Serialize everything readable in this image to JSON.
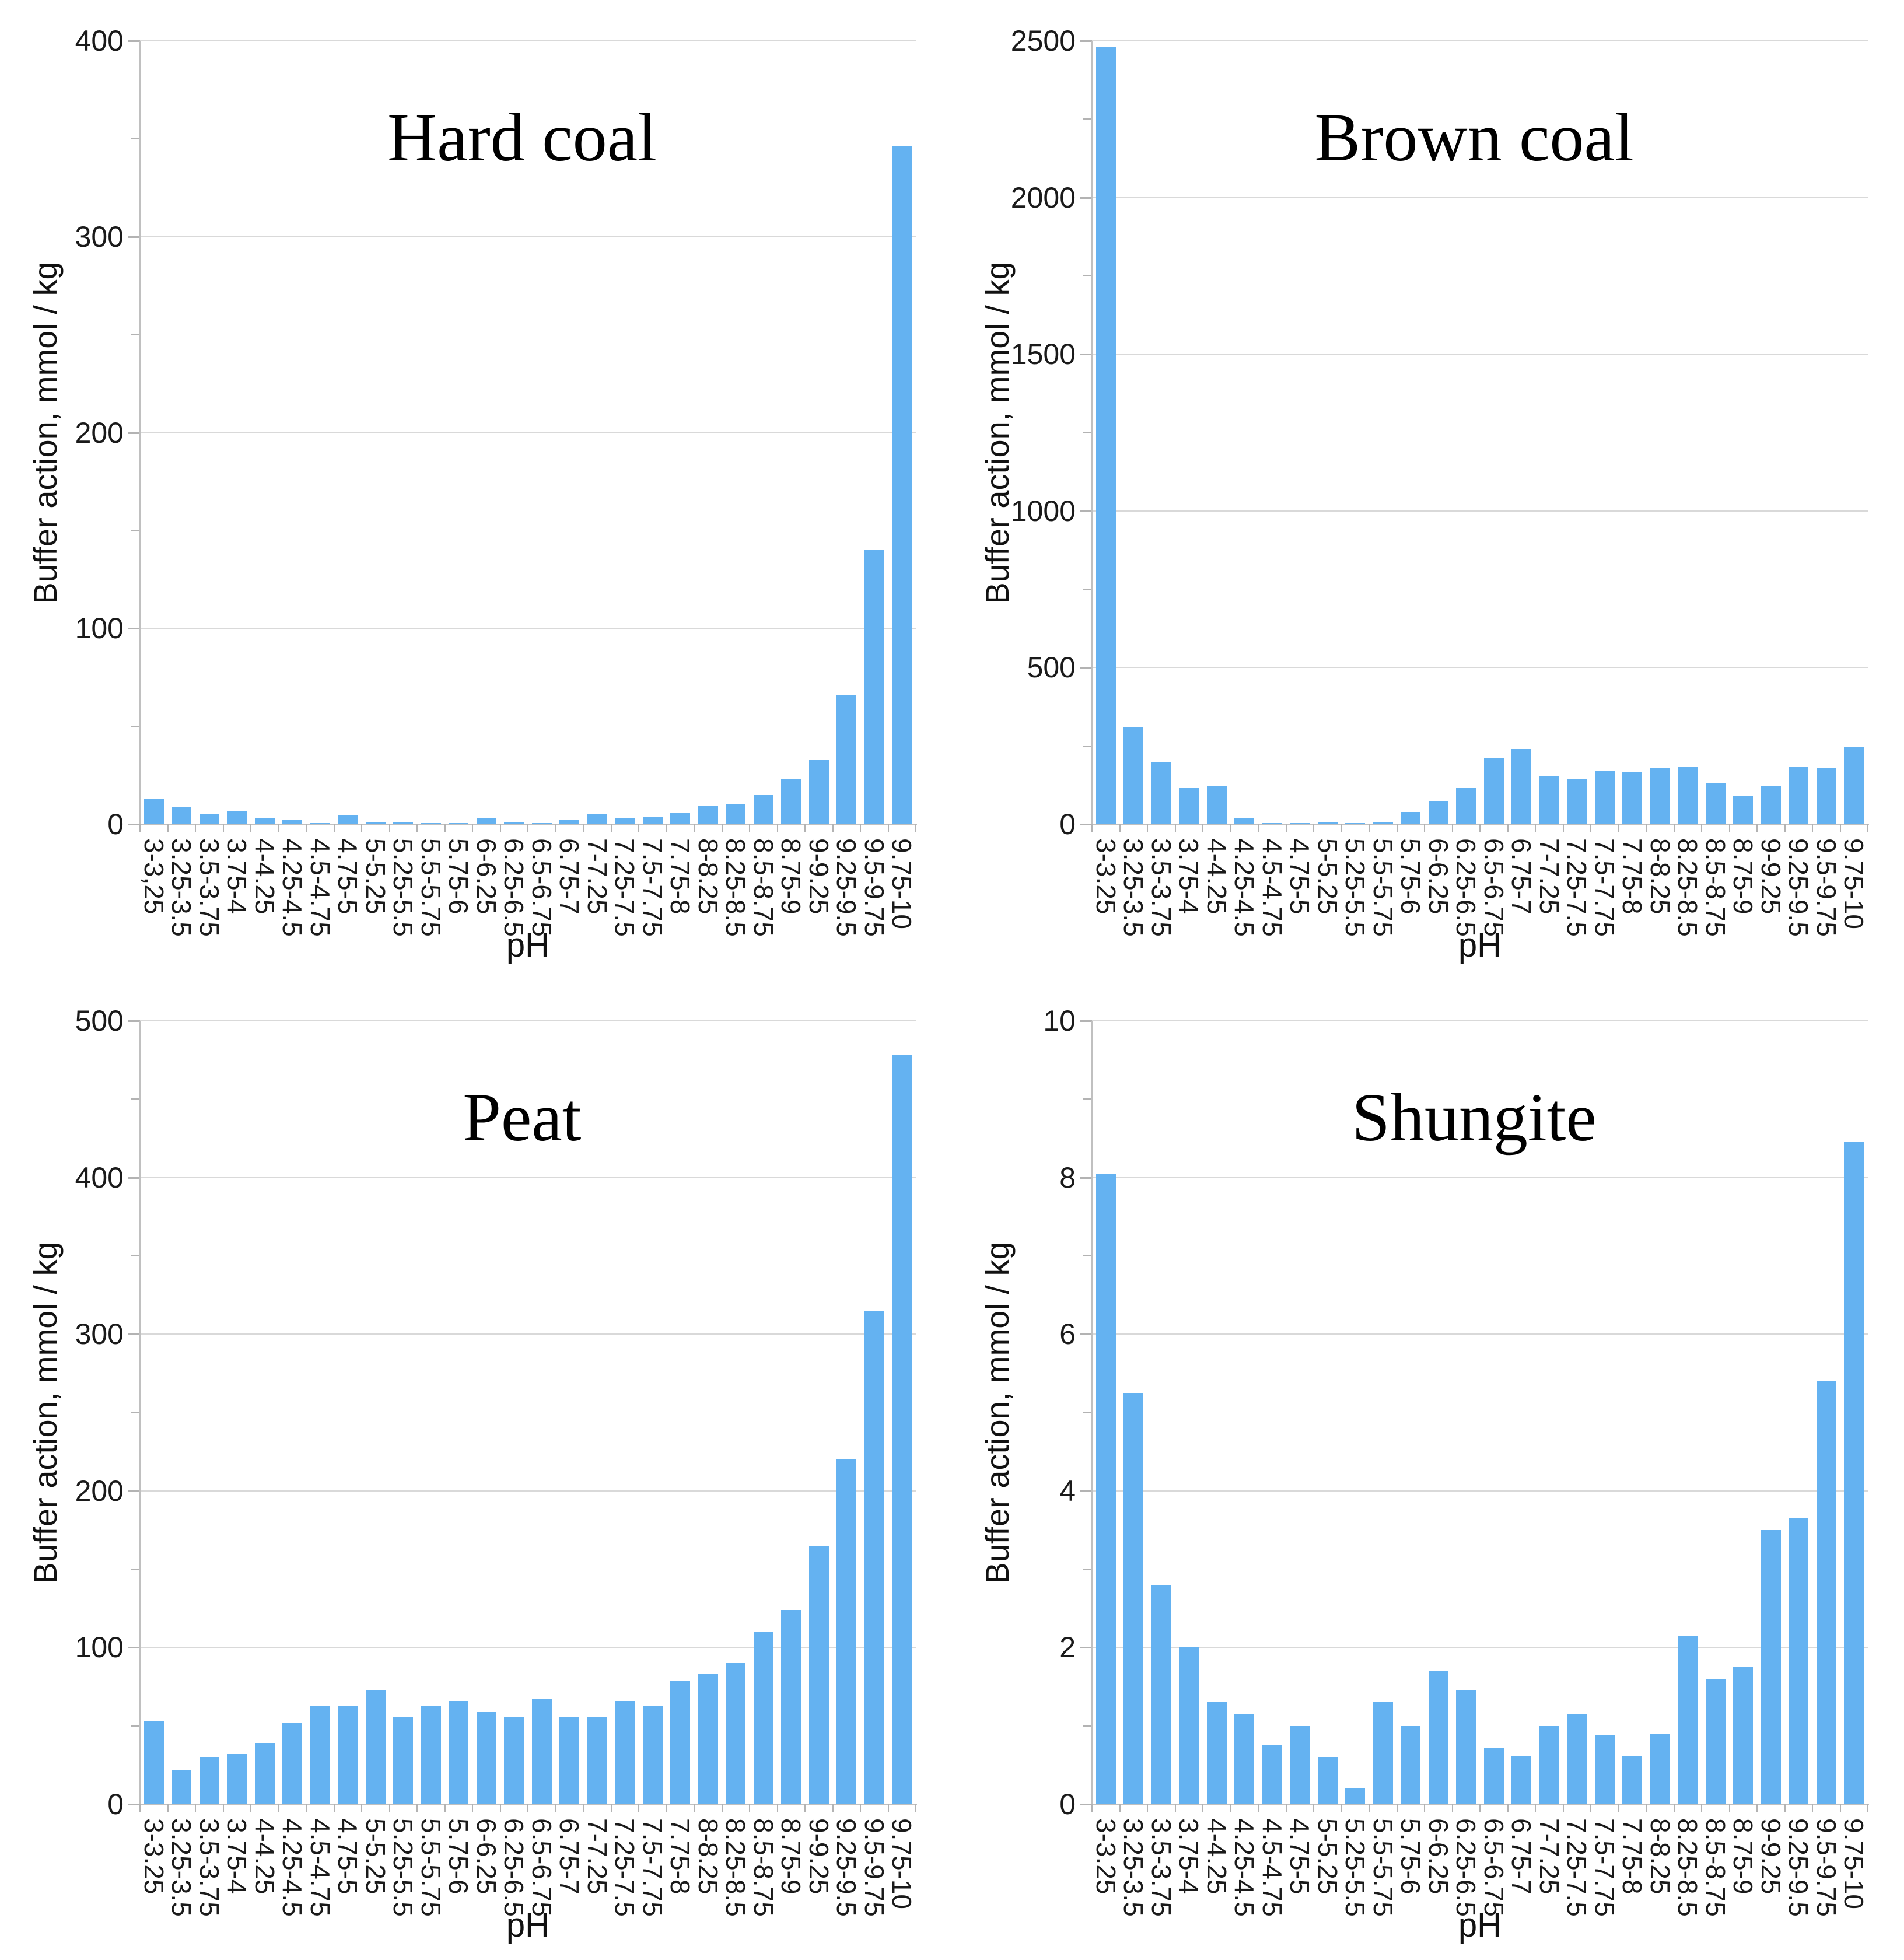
{
  "figure": {
    "background": "#ffffff",
    "bar_color": "#64b2f1",
    "grid_color": "#d9d9d9",
    "axis_color": "#c0c0c0",
    "text_color": "#1a1a1a",
    "title_color": "#000000"
  },
  "chart_data": [
    {
      "type": "bar",
      "title": "Hard coal",
      "xlabel": "pH",
      "ylabel": "Buffer action, mmol / kg",
      "ylim": [
        0,
        400
      ],
      "yticks": [
        0,
        100,
        200,
        300,
        400
      ],
      "ytick_step": 100,
      "yminor_step": 50,
      "grid": true,
      "legend": "none",
      "categories": [
        "3-3,25",
        "3.25-3.5",
        "3.5-3.75",
        "3.75-4",
        "4-4.25",
        "4.25-4.5",
        "4.5-4.75",
        "4.75-5",
        "5-5.25",
        "5.25-5.5",
        "5.5-5.75",
        "5.75-6",
        "6-6.25",
        "6.25-6.5",
        "6.5-6.75",
        "6.75-7",
        "7-7.25",
        "7.25-7.5",
        "7.5-7.75",
        "7.75-8",
        "8-8.25",
        "8.25-8.5",
        "8.5-8.75",
        "8.75-9",
        "9-9.25",
        "9.25-9.5",
        "9.5-9.75",
        "9.75-10"
      ],
      "values": [
        13,
        9,
        5.5,
        6.5,
        3,
        2,
        0.3,
        4.5,
        1.3,
        1.3,
        0.3,
        0.2,
        3,
        1.3,
        0.2,
        2.2,
        5.5,
        3,
        3.7,
        6,
        9.5,
        10.5,
        15,
        23,
        33,
        66,
        140,
        346
      ]
    },
    {
      "type": "bar",
      "title": "Brown coal",
      "xlabel": "pH",
      "ylabel": "Buffer action, mmol / kg",
      "ylim": [
        0,
        2500
      ],
      "yticks": [
        0,
        500,
        1000,
        1500,
        2000,
        2500
      ],
      "ytick_step": 500,
      "yminor_step": 250,
      "grid": true,
      "legend": "none",
      "categories": [
        "3-3.25",
        "3.25-3.5",
        "3.5-3.75",
        "3.75-4",
        "4-4.25",
        "4.25-4.5",
        "4.5-4.75",
        "4.75-5",
        "5-5.25",
        "5.25-5.5",
        "5.5-5.75",
        "5.75-6",
        "6-6.25",
        "6.25-6.5",
        "6.5-6.75",
        "6.75-7",
        "7-7.25",
        "7.25-7.5",
        "7.5-7.75",
        "7.75-8",
        "8-8.25",
        "8.25-8.5",
        "8.5-8.75",
        "8.75-9",
        "9-9.25",
        "9.25-9.5",
        "9.5-9.75",
        "9.75-10"
      ],
      "values": [
        2480,
        310,
        200,
        115,
        123,
        20,
        1.5,
        3,
        5,
        4,
        6,
        40,
        75,
        115,
        210,
        240,
        155,
        145,
        170,
        168,
        180,
        185,
        130,
        92,
        123,
        185,
        178,
        245
      ]
    },
    {
      "type": "bar",
      "title": "Peat",
      "xlabel": "pH",
      "ylabel": "Buffer action, mmol / kg",
      "ylim": [
        0,
        500
      ],
      "yticks": [
        0,
        100,
        200,
        300,
        400,
        500
      ],
      "ytick_step": 100,
      "yminor_step": 50,
      "grid": true,
      "legend": "none",
      "categories": [
        "3-3.25",
        "3.25-3.5",
        "3.5-3.75",
        "3.75-4",
        "4-4.25",
        "4.25-4.5",
        "4.5-4.75",
        "4.75-5",
        "5-5.25",
        "5.25-5.5",
        "5.5-5.75",
        "5.75-6",
        "6-6.25",
        "6.25-6.5",
        "6.5-6.75",
        "6.75-7",
        "7-7.25",
        "7.25-7.5",
        "7.5-7.75",
        "7.75-8",
        "8-8.25",
        "8.25-8.5",
        "8.5-8.75",
        "8.75-9",
        "9-9.25",
        "9.25-9.5",
        "9.5-9.75",
        "9.75-10"
      ],
      "values": [
        53,
        22,
        30,
        32,
        39,
        52,
        63,
        63,
        73,
        56,
        63,
        66,
        59,
        56,
        67,
        56,
        56,
        66,
        63,
        79,
        83,
        90,
        110,
        124,
        165,
        220,
        315,
        478
      ]
    },
    {
      "type": "bar",
      "title": "Shungite",
      "xlabel": "pH",
      "ylabel": "Buffer action, mmol / kg",
      "ylim": [
        0,
        10
      ],
      "yticks": [
        0,
        2,
        4,
        6,
        8,
        10
      ],
      "ytick_step": 2,
      "yminor_step": 1,
      "grid": true,
      "legend": "none",
      "categories": [
        "3-3.25",
        "3.25-3.5",
        "3.5-3.75",
        "3.75-4",
        "4-4.25",
        "4.25-4.5",
        "4.5-4.75",
        "4.75-5",
        "5-5.25",
        "5.25-5.5",
        "5.5-5.75",
        "5.75-6",
        "6-6.25",
        "6.25-6.5",
        "6.5-6.75",
        "6.75-7",
        "7-7.25",
        "7.25-7.5",
        "7.5-7.75",
        "7.75-8",
        "8-8.25",
        "8.25-8.5",
        "8.5-8.75",
        "8.75-9",
        "9-9.25",
        "9.25-9.5",
        "9.5-9.75",
        "9.75-10"
      ],
      "values": [
        8.05,
        5.25,
        2.8,
        2.0,
        1.3,
        1.15,
        0.75,
        1.0,
        0.6,
        0.2,
        1.3,
        1.0,
        1.7,
        1.45,
        0.72,
        0.62,
        1.0,
        1.15,
        0.88,
        0.62,
        0.9,
        2.15,
        1.6,
        1.75,
        3.5,
        3.65,
        5.4,
        8.45
      ]
    }
  ]
}
